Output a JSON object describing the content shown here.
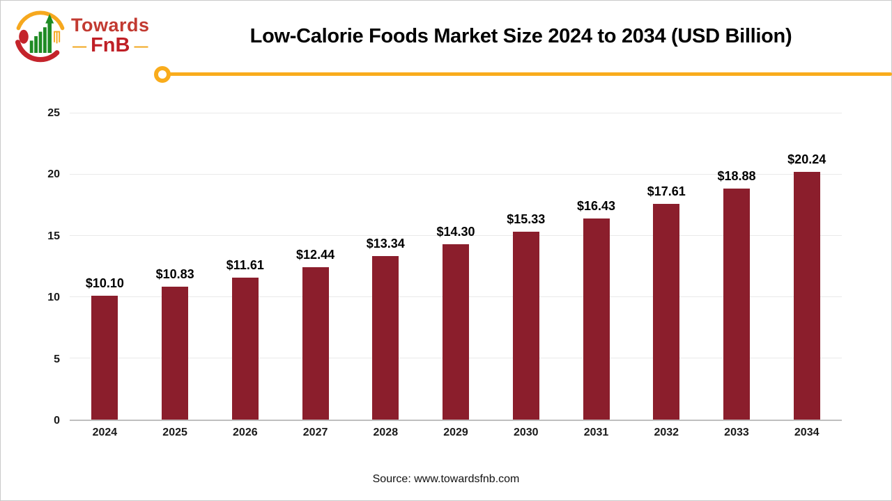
{
  "logo": {
    "line1": "Towards",
    "line2": "FnB",
    "dash": "—",
    "colors": {
      "red": "#c4242b",
      "amber": "#f6a81e",
      "green": "#1f8b24"
    }
  },
  "header": {
    "title": "Low-Calorie Foods Market Size 2024 to 2034 (USD Billion)"
  },
  "divider": {
    "color": "#f9ac1c"
  },
  "chart_data": {
    "type": "bar",
    "title": "Low-Calorie Foods Market Size 2024 to 2034 (USD Billion)",
    "categories": [
      "2024",
      "2025",
      "2026",
      "2027",
      "2028",
      "2029",
      "2030",
      "2031",
      "2032",
      "2033",
      "2034"
    ],
    "values": [
      10.1,
      10.83,
      11.61,
      12.44,
      13.34,
      14.3,
      15.33,
      16.43,
      17.61,
      18.88,
      20.24
    ],
    "value_labels": [
      "$10.10",
      "$10.83",
      "$11.61",
      "$12.44",
      "$13.34",
      "$14.30",
      "$15.33",
      "$16.43",
      "$17.61",
      "$18.88",
      "$20.24"
    ],
    "xlabel": "",
    "ylabel": "",
    "ylim": [
      0,
      25
    ],
    "yticks": [
      0,
      5,
      10,
      15,
      20,
      25
    ],
    "ytick_labels": [
      "0",
      "5",
      "10",
      "15",
      "20",
      "25"
    ],
    "grid": true,
    "legend": "none",
    "bar_color": "#8b1e2c"
  },
  "footer": {
    "source": "Source: www.towardsfnb.com"
  }
}
